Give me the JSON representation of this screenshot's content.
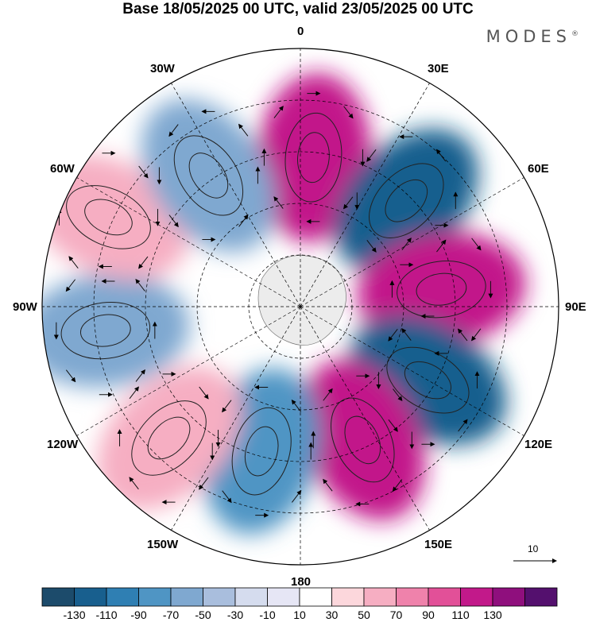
{
  "title": "Base 18/05/2025 00 UTC, valid 23/05/2025 00 UTC",
  "logo": "MODES",
  "projection": "south-polar-stereographic",
  "longitude_labels": [
    {
      "id": "lon-0",
      "text": "0",
      "lon": 0
    },
    {
      "id": "lon-30e",
      "text": "30E",
      "lon": 30
    },
    {
      "id": "lon-60e",
      "text": "60E",
      "lon": 60
    },
    {
      "id": "lon-90e",
      "text": "90E",
      "lon": 90
    },
    {
      "id": "lon-120e",
      "text": "120E",
      "lon": 120
    },
    {
      "id": "lon-150e",
      "text": "150E",
      "lon": 150
    },
    {
      "id": "lon-180",
      "text": "180",
      "lon": 180
    },
    {
      "id": "lon-150w",
      "text": "150W",
      "lon": -150
    },
    {
      "id": "lon-120w",
      "text": "120W",
      "lon": -120
    },
    {
      "id": "lon-90w",
      "text": "90W",
      "lon": -90
    },
    {
      "id": "lon-60w",
      "text": "60W",
      "lon": -60
    },
    {
      "id": "lon-30w",
      "text": "30W",
      "lon": -30
    }
  ],
  "reference_vector": {
    "label": "10"
  },
  "colorbar": {
    "colors": [
      "#1c4b6b",
      "#185f8e",
      "#2f7fb3",
      "#4f95c4",
      "#7fa8d0",
      "#a9bedd",
      "#d5dcee",
      "#e6e6f5",
      "#ffffff",
      "#fcd7dc",
      "#f6aec2",
      "#ef82ab",
      "#e25098",
      "#c2198a",
      "#8f0f7d",
      "#54106e"
    ],
    "tick_labels": [
      "-130",
      "-110",
      "-90",
      "-70",
      "-50",
      "-30",
      "-10",
      "10",
      "30",
      "50",
      "70",
      "90",
      "110",
      "130"
    ]
  },
  "field_anomalies": [
    {
      "lon": 5,
      "ratio": 0.58,
      "value": 120
    },
    {
      "lon": 45,
      "ratio": 0.58,
      "value": -130
    },
    {
      "lon": 83,
      "ratio": 0.55,
      "value": 125
    },
    {
      "lon": 120,
      "ratio": 0.57,
      "value": -130
    },
    {
      "lon": 155,
      "ratio": 0.57,
      "value": 110
    },
    {
      "lon": -165,
      "ratio": 0.58,
      "value": -90
    },
    {
      "lon": -135,
      "ratio": 0.72,
      "value": 55
    },
    {
      "lon": -97,
      "ratio": 0.76,
      "value": -55
    },
    {
      "lon": -65,
      "ratio": 0.82,
      "value": 65
    },
    {
      "lon": -35,
      "ratio": 0.62,
      "value": -70
    }
  ]
}
